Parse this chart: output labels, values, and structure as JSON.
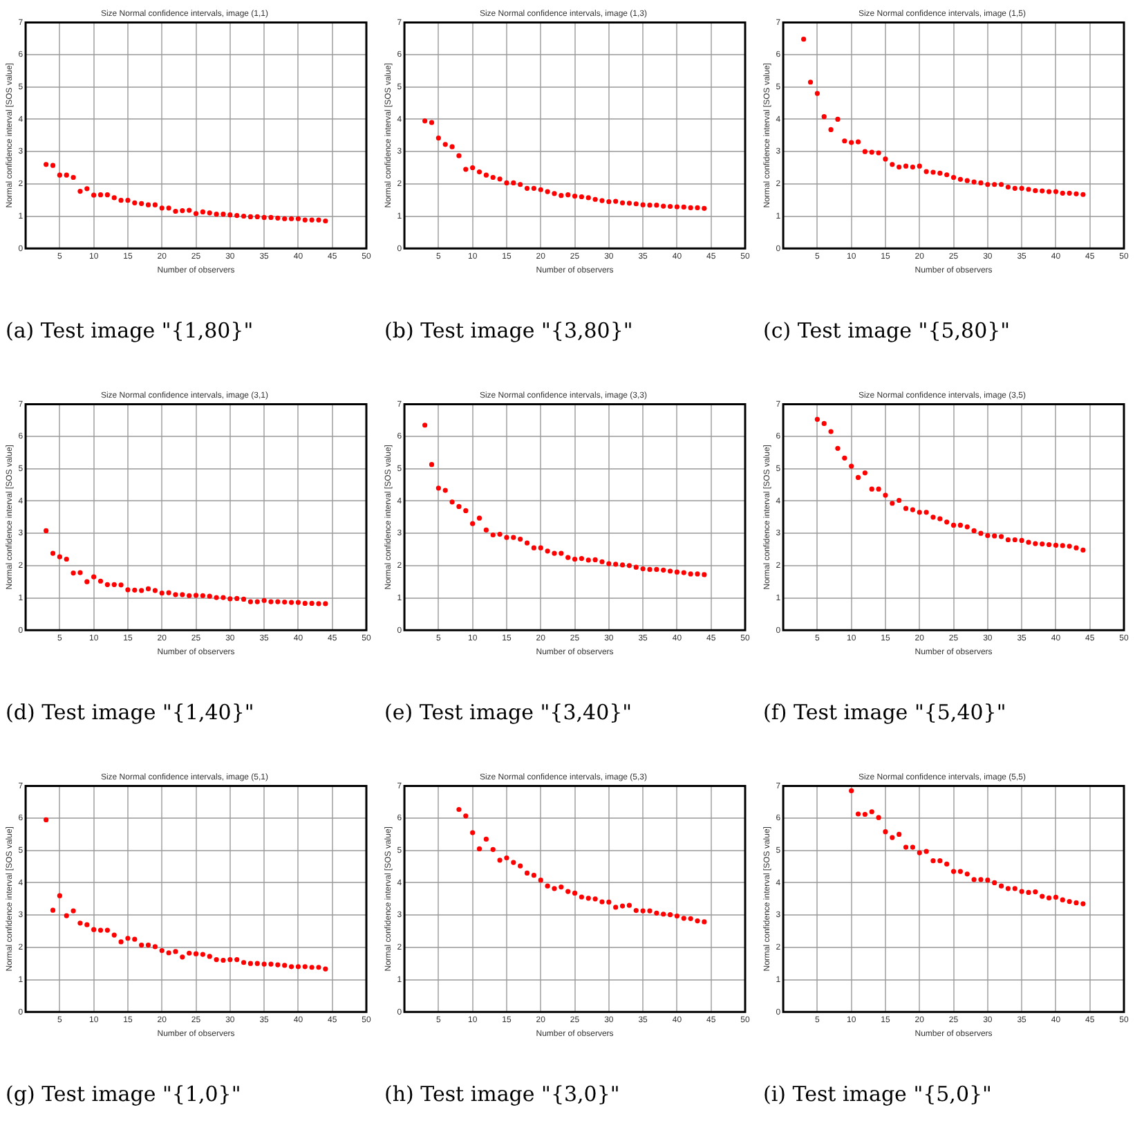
{
  "chart_data": [
    {
      "type": "scatter",
      "title": "Size Normal confidence intervals, image (1,1)",
      "xlabel": "Number of observers",
      "ylabel": "Normal confidence interval [SOS value]",
      "annotations": [
        "(a) Test image \"{1,80}\""
      ],
      "xlim": [
        0,
        50
      ],
      "ylim": [
        0,
        7
      ],
      "xticks": [
        5,
        10,
        15,
        20,
        25,
        30,
        35,
        40,
        45,
        50
      ],
      "yticks": [
        0,
        1,
        2,
        3,
        4,
        5,
        6,
        7
      ],
      "grid": true,
      "marker": "circle",
      "legend": false,
      "series": [
        {
          "color": "#ff0000",
          "x": [
            3,
            4,
            5,
            6,
            7,
            8,
            9,
            10,
            11,
            12,
            13,
            14,
            15,
            16,
            17,
            18,
            19,
            20,
            21,
            22,
            23,
            24,
            25,
            26,
            27,
            28,
            29,
            30,
            31,
            32,
            33,
            34,
            35,
            36,
            37,
            38,
            39,
            40,
            41,
            42,
            43,
            44
          ],
          "values": [
            2.6,
            2.57,
            2.27,
            2.27,
            2.2,
            1.77,
            1.85,
            1.65,
            1.66,
            1.66,
            1.57,
            1.49,
            1.49,
            1.41,
            1.39,
            1.35,
            1.35,
            1.25,
            1.25,
            1.15,
            1.17,
            1.18,
            1.08,
            1.13,
            1.1,
            1.06,
            1.06,
            1.04,
            1.02,
            1.0,
            0.98,
            0.98,
            0.96,
            0.96,
            0.94,
            0.92,
            0.92,
            0.92,
            0.88,
            0.88,
            0.88,
            0.85
          ]
        }
      ]
    },
    {
      "type": "scatter",
      "title": "Size Normal confidence intervals, image (1,3)",
      "xlabel": "Number of observers",
      "ylabel": "Normal confidence interval [SOS value]",
      "annotations": [
        "(b) Test image \"{3,80}\""
      ],
      "xlim": [
        0,
        50
      ],
      "ylim": [
        0,
        7
      ],
      "xticks": [
        5,
        10,
        15,
        20,
        25,
        30,
        35,
        40,
        45,
        50
      ],
      "yticks": [
        0,
        1,
        2,
        3,
        4,
        5,
        6,
        7
      ],
      "grid": true,
      "marker": "circle",
      "legend": false,
      "series": [
        {
          "color": "#ff0000",
          "x": [
            3,
            4,
            5,
            6,
            7,
            8,
            9,
            10,
            11,
            12,
            13,
            14,
            15,
            16,
            17,
            18,
            19,
            20,
            21,
            22,
            23,
            24,
            25,
            26,
            27,
            28,
            29,
            30,
            31,
            32,
            33,
            34,
            35,
            36,
            37,
            38,
            39,
            40,
            41,
            42,
            43,
            44
          ],
          "values": [
            3.95,
            3.9,
            3.42,
            3.22,
            3.15,
            2.87,
            2.45,
            2.5,
            2.37,
            2.27,
            2.2,
            2.15,
            2.03,
            2.03,
            1.98,
            1.86,
            1.86,
            1.82,
            1.76,
            1.7,
            1.64,
            1.66,
            1.62,
            1.6,
            1.57,
            1.52,
            1.48,
            1.45,
            1.46,
            1.41,
            1.4,
            1.38,
            1.35,
            1.34,
            1.34,
            1.31,
            1.3,
            1.29,
            1.28,
            1.26,
            1.26,
            1.24
          ]
        }
      ]
    },
    {
      "type": "scatter",
      "title": "Size Normal confidence intervals, image (1,5)",
      "xlabel": "Number of observers",
      "ylabel": "Normal confidence interval [SOS value]",
      "annotations": [
        "(c) Test image \"{5,80}\""
      ],
      "xlim": [
        0,
        50
      ],
      "ylim": [
        0,
        7
      ],
      "xticks": [
        5,
        10,
        15,
        20,
        25,
        30,
        35,
        40,
        45,
        50
      ],
      "yticks": [
        0,
        1,
        2,
        3,
        4,
        5,
        6,
        7
      ],
      "grid": true,
      "marker": "circle",
      "legend": false,
      "series": [
        {
          "color": "#ff0000",
          "x": [
            3,
            4,
            5,
            6,
            7,
            8,
            9,
            10,
            11,
            12,
            13,
            14,
            15,
            16,
            17,
            18,
            19,
            20,
            21,
            22,
            23,
            24,
            25,
            26,
            27,
            28,
            29,
            30,
            31,
            32,
            33,
            34,
            35,
            36,
            37,
            38,
            39,
            40,
            41,
            42,
            43,
            44
          ],
          "values": [
            6.48,
            5.15,
            4.8,
            4.08,
            3.68,
            4.0,
            3.33,
            3.28,
            3.3,
            3.0,
            2.98,
            2.96,
            2.77,
            2.6,
            2.52,
            2.55,
            2.52,
            2.55,
            2.38,
            2.36,
            2.33,
            2.28,
            2.2,
            2.14,
            2.1,
            2.06,
            2.03,
            1.98,
            1.98,
            1.98,
            1.9,
            1.86,
            1.86,
            1.83,
            1.79,
            1.78,
            1.76,
            1.76,
            1.71,
            1.71,
            1.69,
            1.67
          ]
        }
      ]
    },
    {
      "type": "scatter",
      "title": "Size Normal confidence intervals, image (3,1)",
      "xlabel": "Number of observers",
      "ylabel": "Normal confidence interval [SOS value]",
      "annotations": [
        "(d) Test image \"{1,40}\""
      ],
      "xlim": [
        0,
        50
      ],
      "ylim": [
        0,
        7
      ],
      "xticks": [
        5,
        10,
        15,
        20,
        25,
        30,
        35,
        40,
        45,
        50
      ],
      "yticks": [
        0,
        1,
        2,
        3,
        4,
        5,
        6,
        7
      ],
      "grid": true,
      "marker": "circle",
      "legend": false,
      "series": [
        {
          "color": "#ff0000",
          "x": [
            3,
            4,
            5,
            6,
            7,
            8,
            9,
            10,
            11,
            12,
            13,
            14,
            15,
            16,
            17,
            18,
            19,
            20,
            21,
            22,
            23,
            24,
            25,
            26,
            27,
            28,
            29,
            30,
            31,
            32,
            33,
            34,
            35,
            36,
            37,
            38,
            39,
            40,
            41,
            42,
            43,
            44
          ],
          "values": [
            3.08,
            2.38,
            2.27,
            2.2,
            1.77,
            1.78,
            1.5,
            1.65,
            1.52,
            1.41,
            1.41,
            1.4,
            1.25,
            1.24,
            1.23,
            1.28,
            1.23,
            1.15,
            1.16,
            1.1,
            1.1,
            1.07,
            1.08,
            1.07,
            1.05,
            1.01,
            1.01,
            0.97,
            0.98,
            0.96,
            0.88,
            0.88,
            0.92,
            0.88,
            0.88,
            0.87,
            0.86,
            0.86,
            0.83,
            0.83,
            0.82,
            0.82
          ]
        }
      ]
    },
    {
      "type": "scatter",
      "title": "Size Normal confidence intervals, image (3,3)",
      "xlabel": "Number of observers",
      "ylabel": "Normal confidence interval [SOS value]",
      "annotations": [
        "(e) Test image \"{3,40}\""
      ],
      "xlim": [
        0,
        50
      ],
      "ylim": [
        0,
        7
      ],
      "xticks": [
        5,
        10,
        15,
        20,
        25,
        30,
        35,
        40,
        45,
        50
      ],
      "yticks": [
        0,
        1,
        2,
        3,
        4,
        5,
        6,
        7
      ],
      "grid": true,
      "marker": "circle",
      "legend": false,
      "series": [
        {
          "color": "#ff0000",
          "x": [
            3,
            4,
            5,
            6,
            7,
            8,
            9,
            10,
            11,
            12,
            13,
            14,
            15,
            16,
            17,
            18,
            19,
            20,
            21,
            22,
            23,
            24,
            25,
            26,
            27,
            28,
            29,
            30,
            31,
            32,
            33,
            34,
            35,
            36,
            37,
            38,
            39,
            40,
            41,
            42,
            43,
            44
          ],
          "values": [
            6.35,
            5.13,
            4.4,
            4.33,
            3.97,
            3.83,
            3.7,
            3.3,
            3.47,
            3.1,
            2.95,
            2.97,
            2.87,
            2.87,
            2.82,
            2.7,
            2.55,
            2.55,
            2.45,
            2.38,
            2.38,
            2.25,
            2.2,
            2.22,
            2.17,
            2.18,
            2.12,
            2.06,
            2.04,
            2.02,
            2.0,
            1.95,
            1.9,
            1.88,
            1.88,
            1.86,
            1.83,
            1.8,
            1.78,
            1.74,
            1.74,
            1.72
          ]
        }
      ]
    },
    {
      "type": "scatter",
      "title": "Size Normal confidence intervals, image (3,5)",
      "xlabel": "Number of observers",
      "ylabel": "Normal confidence interval [SOS value]",
      "annotations": [
        "(f) Test image \"{5,40}\""
      ],
      "xlim": [
        0,
        50
      ],
      "ylim": [
        0,
        7
      ],
      "xticks": [
        5,
        10,
        15,
        20,
        25,
        30,
        35,
        40,
        45,
        50
      ],
      "yticks": [
        0,
        1,
        2,
        3,
        4,
        5,
        6,
        7
      ],
      "grid": true,
      "marker": "circle",
      "legend": false,
      "series": [
        {
          "color": "#ff0000",
          "x": [
            5,
            6,
            7,
            8,
            9,
            10,
            11,
            12,
            13,
            14,
            15,
            16,
            17,
            18,
            19,
            20,
            21,
            22,
            23,
            24,
            25,
            26,
            27,
            28,
            29,
            30,
            31,
            32,
            33,
            34,
            35,
            36,
            37,
            38,
            39,
            40,
            41,
            42,
            43,
            44
          ],
          "values": [
            6.53,
            6.4,
            6.15,
            5.63,
            5.33,
            5.08,
            4.73,
            4.87,
            4.37,
            4.37,
            4.18,
            3.93,
            4.02,
            3.77,
            3.73,
            3.65,
            3.65,
            3.5,
            3.45,
            3.35,
            3.25,
            3.25,
            3.2,
            3.08,
            3.0,
            2.93,
            2.92,
            2.9,
            2.8,
            2.8,
            2.78,
            2.72,
            2.68,
            2.67,
            2.65,
            2.63,
            2.62,
            2.6,
            2.55,
            2.48
          ]
        }
      ]
    },
    {
      "type": "scatter",
      "title": "Size Normal confidence intervals, image (5,1)",
      "xlabel": "Number of observers",
      "ylabel": "Normal confidence interval [SOS value]",
      "annotations": [
        "(g) Test image \"{1,0}\""
      ],
      "xlim": [
        0,
        50
      ],
      "ylim": [
        0,
        7
      ],
      "xticks": [
        5,
        10,
        15,
        20,
        25,
        30,
        35,
        40,
        45,
        50
      ],
      "yticks": [
        0,
        1,
        2,
        3,
        4,
        5,
        6,
        7
      ],
      "grid": true,
      "marker": "circle",
      "legend": false,
      "series": [
        {
          "color": "#ff0000",
          "x": [
            3,
            4,
            5,
            6,
            7,
            8,
            9,
            10,
            11,
            12,
            13,
            14,
            15,
            16,
            17,
            18,
            19,
            20,
            21,
            22,
            23,
            24,
            25,
            26,
            27,
            28,
            29,
            30,
            31,
            32,
            33,
            34,
            35,
            36,
            37,
            38,
            39,
            40,
            41,
            42,
            43,
            44
          ],
          "values": [
            5.95,
            3.15,
            3.6,
            2.98,
            3.13,
            2.75,
            2.7,
            2.55,
            2.53,
            2.53,
            2.38,
            2.17,
            2.28,
            2.25,
            2.07,
            2.07,
            2.02,
            1.9,
            1.83,
            1.87,
            1.7,
            1.82,
            1.8,
            1.78,
            1.72,
            1.62,
            1.6,
            1.62,
            1.62,
            1.53,
            1.5,
            1.5,
            1.48,
            1.48,
            1.46,
            1.44,
            1.4,
            1.4,
            1.4,
            1.38,
            1.38,
            1.33
          ]
        }
      ]
    },
    {
      "type": "scatter",
      "title": "Size Normal confidence intervals, image (5,3)",
      "xlabel": "Number of observers",
      "ylabel": "Normal confidence interval [SOS value]",
      "annotations": [
        "(h) Test image \"{3,0}\""
      ],
      "xlim": [
        0,
        50
      ],
      "ylim": [
        0,
        7
      ],
      "xticks": [
        5,
        10,
        15,
        20,
        25,
        30,
        35,
        40,
        45,
        50
      ],
      "yticks": [
        0,
        1,
        2,
        3,
        4,
        5,
        6,
        7
      ],
      "grid": true,
      "marker": "circle",
      "legend": false,
      "series": [
        {
          "color": "#ff0000",
          "x": [
            8,
            9,
            10,
            11,
            12,
            13,
            14,
            15,
            16,
            17,
            18,
            19,
            20,
            21,
            22,
            23,
            24,
            25,
            26,
            27,
            28,
            29,
            30,
            31,
            32,
            33,
            34,
            35,
            36,
            37,
            38,
            39,
            40,
            41,
            42,
            43,
            44
          ],
          "values": [
            6.27,
            6.07,
            5.55,
            5.05,
            5.35,
            5.03,
            4.7,
            4.77,
            4.63,
            4.52,
            4.3,
            4.23,
            4.08,
            3.9,
            3.82,
            3.87,
            3.73,
            3.68,
            3.56,
            3.52,
            3.5,
            3.41,
            3.4,
            3.24,
            3.28,
            3.3,
            3.14,
            3.13,
            3.13,
            3.06,
            3.03,
            3.01,
            2.97,
            2.9,
            2.89,
            2.82,
            2.79
          ]
        }
      ]
    },
    {
      "type": "scatter",
      "title": "Size Normal confidence intervals, image (5,5)",
      "xlabel": "Number of observers",
      "ylabel": "Normal confidence interval [SOS value]",
      "annotations": [
        "(i) Test image \"{5,0}\""
      ],
      "xlim": [
        0,
        50
      ],
      "ylim": [
        0,
        7
      ],
      "xticks": [
        5,
        10,
        15,
        20,
        25,
        30,
        35,
        40,
        45,
        50
      ],
      "yticks": [
        0,
        1,
        2,
        3,
        4,
        5,
        6,
        7
      ],
      "grid": true,
      "marker": "circle",
      "legend": false,
      "series": [
        {
          "color": "#ff0000",
          "x": [
            10,
            11,
            12,
            13,
            14,
            15,
            16,
            17,
            18,
            19,
            20,
            21,
            22,
            23,
            24,
            25,
            26,
            27,
            28,
            29,
            30,
            31,
            32,
            33,
            34,
            35,
            36,
            37,
            38,
            39,
            40,
            41,
            42,
            43,
            44
          ],
          "values": [
            6.85,
            6.13,
            6.12,
            6.2,
            6.02,
            5.58,
            5.4,
            5.5,
            5.1,
            5.1,
            4.93,
            4.97,
            4.68,
            4.68,
            4.58,
            4.35,
            4.35,
            4.27,
            4.1,
            4.1,
            4.08,
            4.0,
            3.9,
            3.82,
            3.82,
            3.73,
            3.7,
            3.72,
            3.58,
            3.53,
            3.55,
            3.47,
            3.42,
            3.38,
            3.35
          ]
        }
      ]
    }
  ]
}
